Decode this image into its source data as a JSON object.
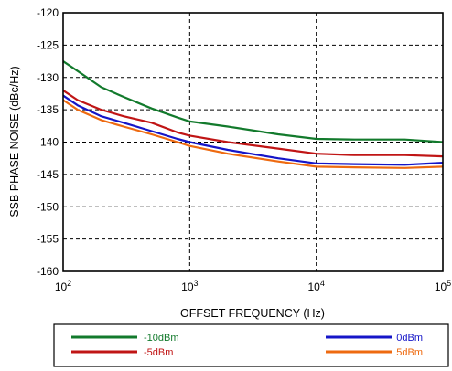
{
  "chart_data": {
    "type": "line",
    "xlabel": "OFFSET FREQUENCY (Hz)",
    "ylabel": "SSB PHASE NOISE (dBc/Hz)",
    "x_scale": "log",
    "xlim": [
      100,
      100000
    ],
    "ylim": [
      -160,
      -120
    ],
    "x_ticks": [
      {
        "base": "10",
        "exp": "2"
      },
      {
        "base": "10",
        "exp": "3"
      },
      {
        "base": "10",
        "exp": "4"
      },
      {
        "base": "10",
        "exp": "5"
      }
    ],
    "y_ticks": [
      "-120",
      "-125",
      "-130",
      "-135",
      "-140",
      "-145",
      "-150",
      "-155",
      "-160"
    ],
    "grid": "dashed",
    "legend_position": "bottom",
    "series": [
      {
        "name": "-10dBm",
        "color": "#127a2c",
        "x": [
          100,
          130,
          200,
          300,
          500,
          800,
          1000,
          2000,
          5000,
          10000,
          20000,
          50000,
          100000
        ],
        "y": [
          -127.5,
          -129.0,
          -131.5,
          -133.0,
          -134.8,
          -136.2,
          -136.8,
          -137.6,
          -138.8,
          -139.5,
          -139.6,
          -139.6,
          -140.0
        ]
      },
      {
        "name": "-5dBm",
        "color": "#c01515",
        "x": [
          100,
          130,
          200,
          300,
          500,
          800,
          1000,
          2000,
          5000,
          10000,
          20000,
          50000,
          100000
        ],
        "y": [
          -132.0,
          -133.5,
          -135.0,
          -136.0,
          -137.0,
          -138.5,
          -139.0,
          -140.0,
          -141.0,
          -141.8,
          -142.0,
          -142.0,
          -142.2
        ]
      },
      {
        "name": "0dBm",
        "color": "#1515c8",
        "x": [
          100,
          130,
          200,
          300,
          500,
          800,
          1000,
          2000,
          5000,
          10000,
          20000,
          50000,
          100000
        ],
        "y": [
          -132.8,
          -134.3,
          -136.0,
          -137.0,
          -138.3,
          -139.5,
          -140.0,
          -141.2,
          -142.5,
          -143.3,
          -143.4,
          -143.5,
          -143.2
        ]
      },
      {
        "name": "5dBm",
        "color": "#ee6a10",
        "x": [
          100,
          130,
          200,
          300,
          500,
          800,
          1000,
          2000,
          5000,
          10000,
          20000,
          50000,
          100000
        ],
        "y": [
          -133.5,
          -135.0,
          -136.6,
          -137.6,
          -138.8,
          -140.0,
          -140.6,
          -141.8,
          -143.0,
          -143.8,
          -143.9,
          -144.0,
          -143.8
        ]
      }
    ]
  }
}
